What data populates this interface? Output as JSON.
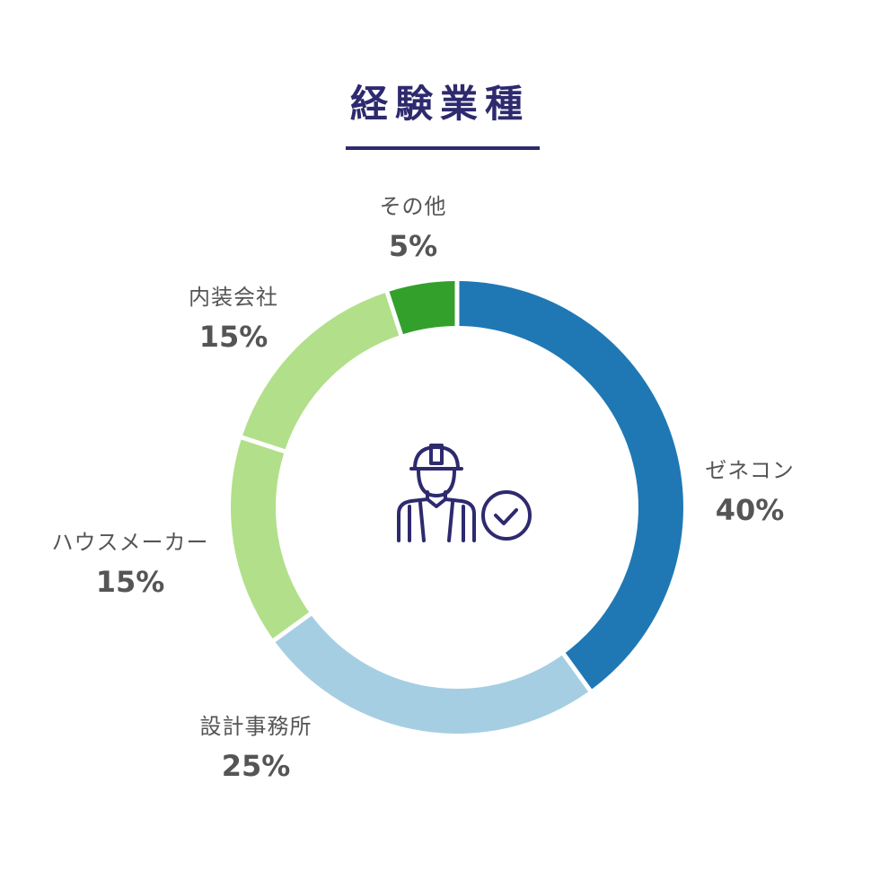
{
  "header": {
    "title": "経験業種"
  },
  "colors": {
    "title": "#2e2a6e",
    "label_text": "#555555",
    "icon": "#2e2a6e"
  },
  "center_icon": "construction-worker-check-icon",
  "labels": [
    {
      "name": "ゼネコン",
      "pct": "40%"
    },
    {
      "name": "設計事務所",
      "pct": "25%"
    },
    {
      "name": "ハウスメーカー",
      "pct": "15%"
    },
    {
      "name": "内装会社",
      "pct": "15%"
    },
    {
      "name": "その他",
      "pct": "5%"
    }
  ],
  "chart_data": {
    "type": "pie",
    "subtype": "donut",
    "title": "経験業種",
    "categories": [
      "ゼネコン",
      "設計事務所",
      "ハウスメーカー",
      "内装会社",
      "その他"
    ],
    "values": [
      40,
      25,
      15,
      15,
      5
    ],
    "unit": "%",
    "colors": [
      "#1f78b4",
      "#a6cee3",
      "#b2df8a",
      "#b2df8a",
      "#33a02c"
    ],
    "start_angle": "12 o'clock",
    "direction": "clockwise",
    "legend": "none (direct labels around ring)"
  }
}
